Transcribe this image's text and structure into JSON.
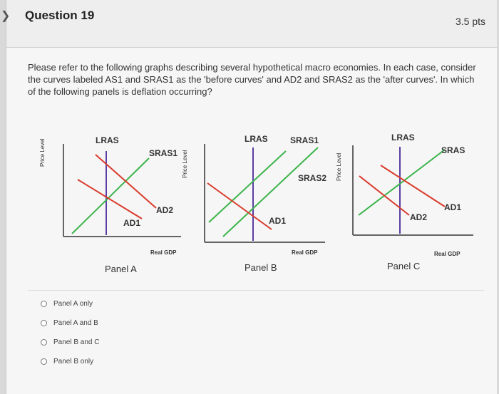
{
  "question": {
    "title": "Question 19",
    "points": "3.5 pts",
    "prompt": "Please refer to the following graphs describing several hypothetical macro economies. In each case, consider the curves labeled AS1 and SRAS1 as the 'before curves' and AD2 and SRAS2 as the 'after curves'. In which of the following panels is deflation occurring?"
  },
  "panels": [
    {
      "name": "Panel A",
      "y_axis": "Price Level",
      "x_axis": "Real GDP",
      "labels": {
        "lras": "LRAS",
        "sras": "SRAS1",
        "ad_a": "AD2",
        "ad_b": "AD1"
      }
    },
    {
      "name": "Panel B",
      "y_axis": "Price Level",
      "x_axis": "Real GDP",
      "labels": {
        "lras": "LRAS",
        "sras": "SRAS1",
        "sras2": "SRAS2",
        "ad": "AD1"
      }
    },
    {
      "name": "Panel C",
      "y_axis": "Price Level",
      "x_axis": "Real GDP",
      "labels": {
        "lras": "LRAS",
        "sras": "SRAS",
        "ad_a": "AD1",
        "ad_b": "AD2"
      }
    }
  ],
  "options": [
    "Panel A only",
    "Panel A and B",
    "Panel B and C",
    "Panel B only"
  ],
  "colors": {
    "lras": "#5b3fa3",
    "sras": "#3cb44b",
    "ad": "#d93a2b",
    "axis": "#333333"
  }
}
